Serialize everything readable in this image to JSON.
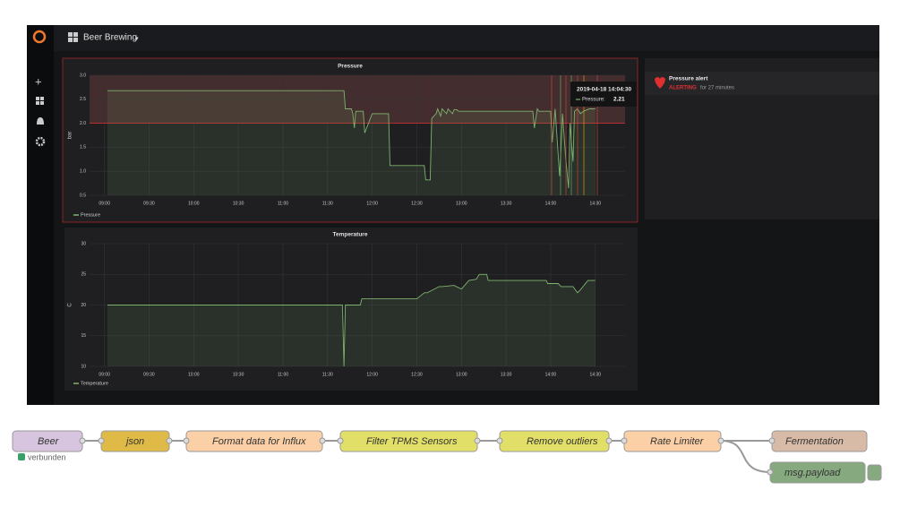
{
  "header": {
    "title": "Beer Brewing"
  },
  "chart_data": [
    {
      "type": "line",
      "title": "Pressure",
      "y_label": "bar",
      "x": [
        542,
        701,
        702,
        706,
        707,
        708,
        709,
        714,
        715,
        720,
        731,
        732,
        755,
        756,
        759,
        760,
        763,
        764,
        766,
        767,
        770,
        771,
        774,
        775,
        777,
        778,
        798,
        828,
        829,
        831,
        832,
        840,
        841,
        843,
        846,
        848,
        850,
        852,
        853,
        855,
        856,
        858,
        860,
        862,
        866,
        870
      ],
      "series": [
        {
          "name": "Pressure",
          "color": "#7eb26d",
          "values": [
            2.68,
            2.68,
            2.3,
            2.3,
            2.2,
            1.9,
            2.25,
            2.25,
            1.8,
            2.2,
            2.2,
            1.12,
            1.12,
            0.82,
            0.82,
            2.1,
            2.2,
            2.3,
            2.15,
            2.3,
            2.2,
            2.3,
            2.2,
            2.28,
            2.28,
            2.25,
            2.25,
            2.25,
            1.9,
            2.3,
            2.25,
            2.25,
            1.6,
            2.3,
            0.9,
            2.2,
            1.3,
            0.65,
            2.0,
            1.2,
            2.25,
            2.3,
            2.2,
            2.25,
            2.3,
            2.3
          ]
        }
      ],
      "threshold": 2,
      "xlim": [
        530,
        890
      ],
      "xticks": [
        {
          "value": 540,
          "label": "09:00"
        },
        {
          "value": 570,
          "label": "09:30"
        },
        {
          "value": 600,
          "label": "10:00"
        },
        {
          "value": 630,
          "label": "10:30"
        },
        {
          "value": 660,
          "label": "11:00"
        },
        {
          "value": 690,
          "label": "11:30"
        },
        {
          "value": 720,
          "label": "12:00"
        },
        {
          "value": 750,
          "label": "12:30"
        },
        {
          "value": 780,
          "label": "13:00"
        },
        {
          "value": 810,
          "label": "13:30"
        },
        {
          "value": 840,
          "label": "14:00"
        },
        {
          "value": 870,
          "label": "14:30"
        }
      ],
      "ylim": [
        0.5,
        3
      ],
      "yticks": [
        0.5,
        {
          "value": 1,
          "label": "1.0"
        },
        1.5,
        {
          "value": 2,
          "label": "2.0"
        },
        2.5,
        {
          "value": 3,
          "label": "3.0"
        }
      ],
      "grid": true,
      "legend": "bottom-left"
    },
    {
      "type": "line",
      "title": "Temperature",
      "y_label": "C",
      "x": [
        542,
        700,
        701,
        702,
        712,
        713,
        750,
        755,
        757,
        765,
        767,
        775,
        780,
        785,
        790,
        792,
        797,
        798,
        837,
        838,
        845,
        847,
        855,
        858,
        860,
        865,
        870
      ],
      "series": [
        {
          "name": "Temperature",
          "color": "#7eb26d",
          "values": [
            20,
            20,
            10,
            20,
            20,
            21,
            21,
            22,
            22,
            23,
            23,
            23.2,
            22.6,
            24,
            24.2,
            25,
            25,
            24,
            24,
            23.5,
            23.5,
            23,
            23,
            22,
            22.5,
            24,
            24
          ]
        }
      ],
      "xlim": [
        530,
        890
      ],
      "xticks": [
        {
          "value": 540,
          "label": "09:00"
        },
        {
          "value": 570,
          "label": "09:30"
        },
        {
          "value": 600,
          "label": "10:00"
        },
        {
          "value": 630,
          "label": "10:30"
        },
        {
          "value": 660,
          "label": "11:00"
        },
        {
          "value": 690,
          "label": "11:30"
        },
        {
          "value": 720,
          "label": "12:00"
        },
        {
          "value": 750,
          "label": "12:30"
        },
        {
          "value": 780,
          "label": "13:00"
        },
        {
          "value": 810,
          "label": "13:30"
        },
        {
          "value": 840,
          "label": "14:00"
        },
        {
          "value": 870,
          "label": "14:30"
        }
      ],
      "ylim": [
        10,
        30
      ],
      "yticks": [
        10,
        15,
        20,
        25,
        30
      ],
      "grid": true,
      "legend": "bottom-left"
    }
  ],
  "tooltip": {
    "time": "2019-04-18 14:04:30",
    "series": "Pressure:",
    "value": "2.21"
  },
  "alert": {
    "name": "Pressure alert",
    "state": "ALERTING",
    "duration": "for 27 minutes"
  },
  "flow": {
    "nodes": [
      "Beer",
      "json",
      "Format data for Influx",
      "Filter TPMS Sensors",
      "Remove outliers",
      "Rate Limiter",
      "Fermentation",
      "msg.payload"
    ],
    "status": "verbunden"
  }
}
